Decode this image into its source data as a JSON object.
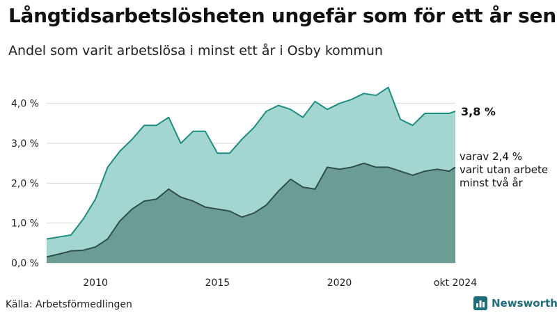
{
  "title": "Långtidsarbetslösheten ungefär som för ett år sen",
  "subtitle": "Andel som varit arbetslösa i minst ett år i Osby kommun",
  "source": "Källa: Arbetsförmedlingen",
  "brand": {
    "name": "Newsworthy",
    "icon": "newsworthy-logo-icon"
  },
  "colors": {
    "total_fill": "#a3d5d1",
    "total_line": "#1e8c7e",
    "long_fill": "#6c9d95",
    "long_line": "#2f4f49",
    "grid": "#d6d6d6",
    "brand": "#1e6d7a"
  },
  "chart_data": {
    "type": "area",
    "title": "Långtidsarbetslösheten ungefär som för ett år sen",
    "subtitle": "Andel som varit arbetslösa i minst ett år i Osby kommun",
    "xlabel": "",
    "ylabel": "",
    "ylim": [
      0,
      4.5
    ],
    "grid": true,
    "yticks": [
      0,
      1,
      2,
      3,
      4
    ],
    "ytick_labels": [
      "0,0 %",
      "1,0 %",
      "2,0 %",
      "3,0 %",
      "4,0 %"
    ],
    "xticks": [
      2010,
      2015,
      2020,
      2024.75
    ],
    "xtick_labels": [
      "2010",
      "2015",
      "2020",
      "okt 2024"
    ],
    "x": [
      2008.0,
      2008.5,
      2009.0,
      2009.5,
      2010.0,
      2010.5,
      2011.0,
      2011.5,
      2012.0,
      2012.5,
      2013.0,
      2013.5,
      2014.0,
      2014.5,
      2015.0,
      2015.5,
      2016.0,
      2016.5,
      2017.0,
      2017.5,
      2018.0,
      2018.5,
      2019.0,
      2019.5,
      2020.0,
      2020.5,
      2021.0,
      2021.5,
      2022.0,
      2022.5,
      2023.0,
      2023.5,
      2024.0,
      2024.5,
      2024.75
    ],
    "series": [
      {
        "values": [
          0.6,
          0.65,
          0.7,
          1.1,
          1.6,
          2.4,
          2.8,
          3.1,
          3.45,
          3.45,
          3.65,
          3.0,
          3.3,
          3.3,
          2.75,
          2.75,
          3.1,
          3.4,
          3.8,
          3.95,
          3.85,
          3.65,
          4.05,
          3.85,
          4.0,
          4.1,
          4.25,
          4.2,
          4.4,
          3.6,
          3.45,
          3.75,
          3.75,
          3.75,
          3.8
        ]
      },
      {
        "values": [
          0.15,
          0.22,
          0.3,
          0.32,
          0.4,
          0.6,
          1.05,
          1.35,
          1.55,
          1.6,
          1.85,
          1.65,
          1.55,
          1.4,
          1.35,
          1.3,
          1.15,
          1.25,
          1.45,
          1.8,
          2.1,
          1.9,
          1.85,
          2.4,
          2.35,
          2.4,
          2.5,
          2.4,
          2.4,
          2.3,
          2.2,
          2.3,
          2.35,
          2.3,
          2.4
        ]
      }
    ],
    "end_labels": {
      "total": "3,8 %",
      "long_lines": [
        "varav 2,4 %",
        "varit utan arbete",
        "minst två år"
      ]
    }
  }
}
